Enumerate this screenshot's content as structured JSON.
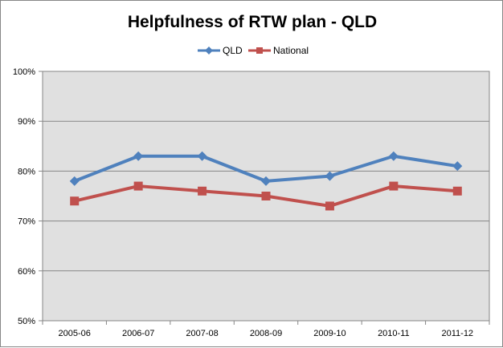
{
  "chart_data": {
    "type": "line",
    "title": "Helpfulness of RTW plan - QLD",
    "categories": [
      "2005-06",
      "2006-07",
      "2007-08",
      "2008-09",
      "2009-10",
      "2010-11",
      "2011-12"
    ],
    "series": [
      {
        "name": "QLD",
        "values": [
          78,
          83,
          83,
          78,
          79,
          83,
          81
        ],
        "color": "#4F81BD",
        "marker": "diamond"
      },
      {
        "name": "National",
        "values": [
          74,
          77,
          76,
          75,
          73,
          77,
          76
        ],
        "color": "#C0504D",
        "marker": "square"
      }
    ],
    "ylim": [
      50,
      100
    ],
    "yticks": [
      50,
      60,
      70,
      80,
      90,
      100
    ],
    "ytick_labels": [
      "50%",
      "60%",
      "70%",
      "80%",
      "90%",
      "100%"
    ],
    "xlabel": "",
    "ylabel": "",
    "grid": true,
    "legend_position": "top",
    "plot_background": "#E0E0E0"
  }
}
